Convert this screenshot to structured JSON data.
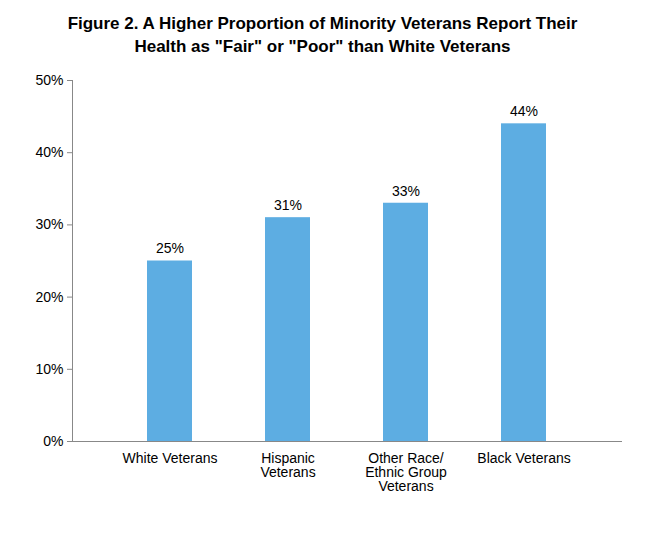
{
  "chart_data": {
    "type": "bar",
    "title": "Figure 2. A Higher Proportion of Minority Veterans Report Their Health as \"Fair\" or \"Poor\" than White Veterans",
    "categories": [
      "White Veterans",
      "Hispanic Veterans",
      "Other Race/ Ethnic Group Veterans",
      "Black Veterans"
    ],
    "values": [
      25,
      31,
      33,
      44
    ],
    "value_labels": [
      "25%",
      "31%",
      "33%",
      "44%"
    ],
    "data_labels": true,
    "color": "#5dade2",
    "ylim": [
      0,
      50
    ],
    "yticks": [
      {
        "value": 0,
        "label": "0%"
      },
      {
        "value": 10,
        "label": "10%"
      },
      {
        "value": 20,
        "label": "20%"
      },
      {
        "value": 30,
        "label": "30%"
      },
      {
        "value": 40,
        "label": "40%"
      },
      {
        "value": 50,
        "label": "50%"
      }
    ],
    "grid": false
  }
}
